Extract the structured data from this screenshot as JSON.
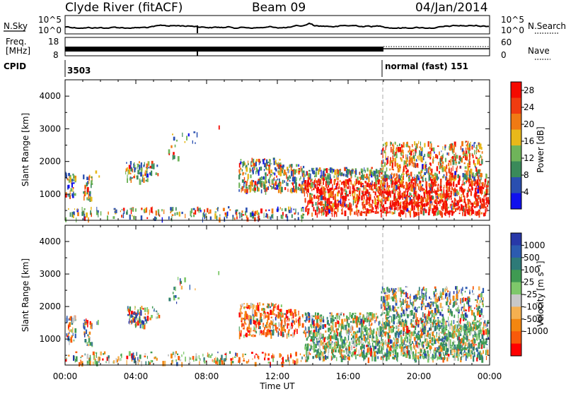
{
  "header": {
    "title": "Clyde River (fitACF)",
    "beam": "Beam 09",
    "date": "04/Jan/2014"
  },
  "panels": {
    "nsky_label": "N.Sky",
    "nsearch_label": "N.Search",
    "noise_ticks": [
      "10^5",
      "10^0"
    ],
    "freq_label_line1": "Freq.",
    "freq_label_line2": "[MHz]",
    "freq_ticks": [
      "18",
      "8"
    ],
    "nave_label": "Nave",
    "nave_ticks": [
      "60",
      "0"
    ],
    "cpid_label": "CPID",
    "cpid_left": "3503",
    "cpid_right": "normal (fast) 151"
  },
  "colors": {
    "power_scale": [
      "#1010ee",
      "#2a4fb0",
      "#3a8a5a",
      "#6fb45a",
      "#e8b81a",
      "#f07a14",
      "#f03c10",
      "#f50a00"
    ],
    "velocity_scale": [
      "#ff0000",
      "#f85a0a",
      "#f3860f",
      "#f5b050",
      "#c8c8c8",
      "#7ec86a",
      "#3f9a52",
      "#2e7a78",
      "#2c5bb0",
      "#2838a8"
    ]
  },
  "chart_data": [
    {
      "type": "heatmap",
      "title": "Power",
      "xlabel": "",
      "ylabel": "Slant Range [km]",
      "x_ticks": [
        "00:00",
        "04:00",
        "08:00",
        "12:00",
        "16:00",
        "20:00",
        "00:00"
      ],
      "y_ticks": [
        "1000",
        "2000",
        "3000",
        "4000"
      ],
      "ylim": [
        200,
        4500
      ],
      "colorbar_label": "Power [dB]",
      "colorbar_ticks": [
        "4",
        "8",
        "12",
        "16",
        "20",
        "24",
        "28"
      ],
      "clim": [
        0,
        30
      ]
    },
    {
      "type": "heatmap",
      "title": "Velocity",
      "xlabel": "Time UT",
      "ylabel": "Slant Range [km]",
      "x_ticks": [
        "00:00",
        "04:00",
        "08:00",
        "12:00",
        "16:00",
        "20:00",
        "00:00"
      ],
      "y_ticks": [
        "1000",
        "2000",
        "3000",
        "4000"
      ],
      "ylim": [
        200,
        4500
      ],
      "colorbar_label": "Velocity [m s⁻¹]",
      "colorbar_ticks": [
        "1000",
        "500",
        "100",
        "25",
        "-25",
        "-100",
        "-500",
        "-1000"
      ]
    }
  ]
}
